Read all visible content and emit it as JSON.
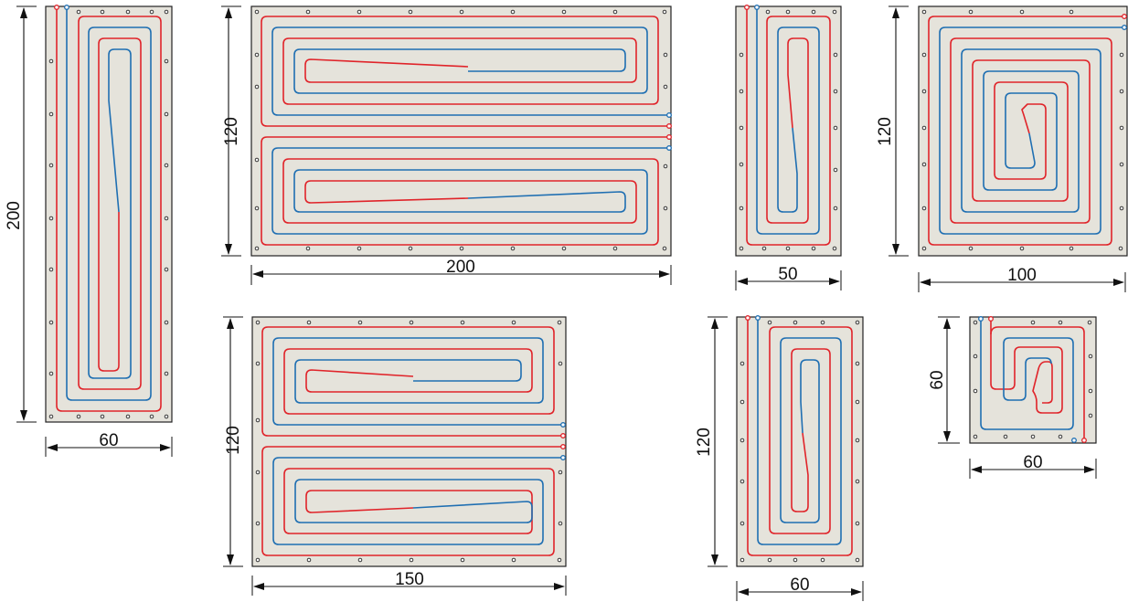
{
  "panels": [
    {
      "id": "p1",
      "width_label": "60",
      "height_label": "200",
      "layout": "spiral-vertical"
    },
    {
      "id": "p2",
      "width_label": "200",
      "height_label": "120",
      "layout": "double-horizontal"
    },
    {
      "id": "p3",
      "width_label": "50",
      "height_label": "",
      "layout": "spiral-vertical"
    },
    {
      "id": "p4",
      "width_label": "100",
      "height_label": "120",
      "layout": "spiral-square"
    },
    {
      "id": "p5",
      "width_label": "150",
      "height_label": "120",
      "layout": "double-horizontal"
    },
    {
      "id": "p6",
      "width_label": "60",
      "height_label": "120",
      "layout": "spiral-vertical"
    },
    {
      "id": "p7",
      "width_label": "60",
      "height_label": "60",
      "layout": "spiral-square"
    }
  ],
  "colors": {
    "supply": "#e0242a",
    "return": "#1f6fb2",
    "panel": "#e5e3db"
  }
}
